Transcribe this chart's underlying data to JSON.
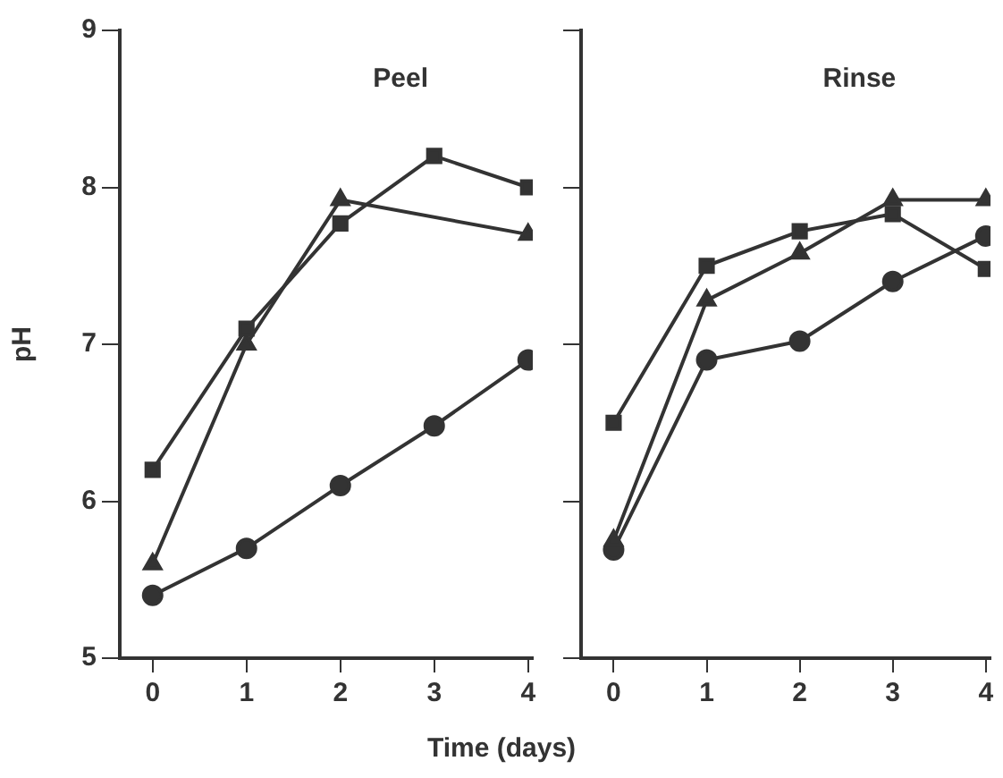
{
  "chart_data": [
    {
      "type": "line",
      "title": "Peel",
      "xlabel": "Time (days)",
      "ylabel": "pH",
      "xlim": [
        -0.35,
        4.05
      ],
      "xticks": [
        0,
        1,
        2,
        3,
        4
      ],
      "ylim": [
        5,
        9
      ],
      "yticks": [
        5,
        6,
        7,
        8,
        9
      ],
      "grid": false,
      "legend": false,
      "line_style": "solid",
      "series": [
        {
          "color": "#333333",
          "marker": "square",
          "x": [
            0,
            1,
            2,
            3,
            4
          ],
          "values": [
            6.2,
            7.1,
            7.77,
            8.2,
            8.0
          ]
        },
        {
          "color": "#333333",
          "marker": "triangle",
          "x": [
            0,
            1,
            2,
            4
          ],
          "values": [
            5.6,
            7.0,
            7.92,
            7.7
          ]
        },
        {
          "color": "#333333",
          "marker": "circle",
          "x": [
            0,
            1,
            2,
            3,
            4
          ],
          "values": [
            5.4,
            5.7,
            6.1,
            6.48,
            6.9
          ]
        }
      ]
    },
    {
      "type": "line",
      "title": "Rinse",
      "xlim": [
        -0.35,
        4.05
      ],
      "xticks": [
        0,
        1,
        2,
        3,
        4
      ],
      "ylim": [
        5,
        9
      ],
      "yticks": [
        5,
        6,
        7,
        8,
        9
      ],
      "tick_labels": "x",
      "grid": false,
      "legend": false,
      "line_style": "solid",
      "series": [
        {
          "color": "#333333",
          "marker": "square",
          "x": [
            0,
            1,
            2,
            3,
            4
          ],
          "values": [
            6.5,
            7.5,
            7.72,
            7.83,
            7.48
          ]
        },
        {
          "color": "#333333",
          "marker": "triangle",
          "x": [
            0,
            1,
            2,
            3,
            4
          ],
          "values": [
            5.75,
            7.28,
            7.58,
            7.92,
            7.92
          ]
        },
        {
          "color": "#333333",
          "marker": "circle",
          "x": [
            0,
            1,
            2,
            3,
            4
          ],
          "values": [
            5.69,
            6.9,
            7.02,
            7.4,
            7.69
          ]
        }
      ]
    }
  ]
}
